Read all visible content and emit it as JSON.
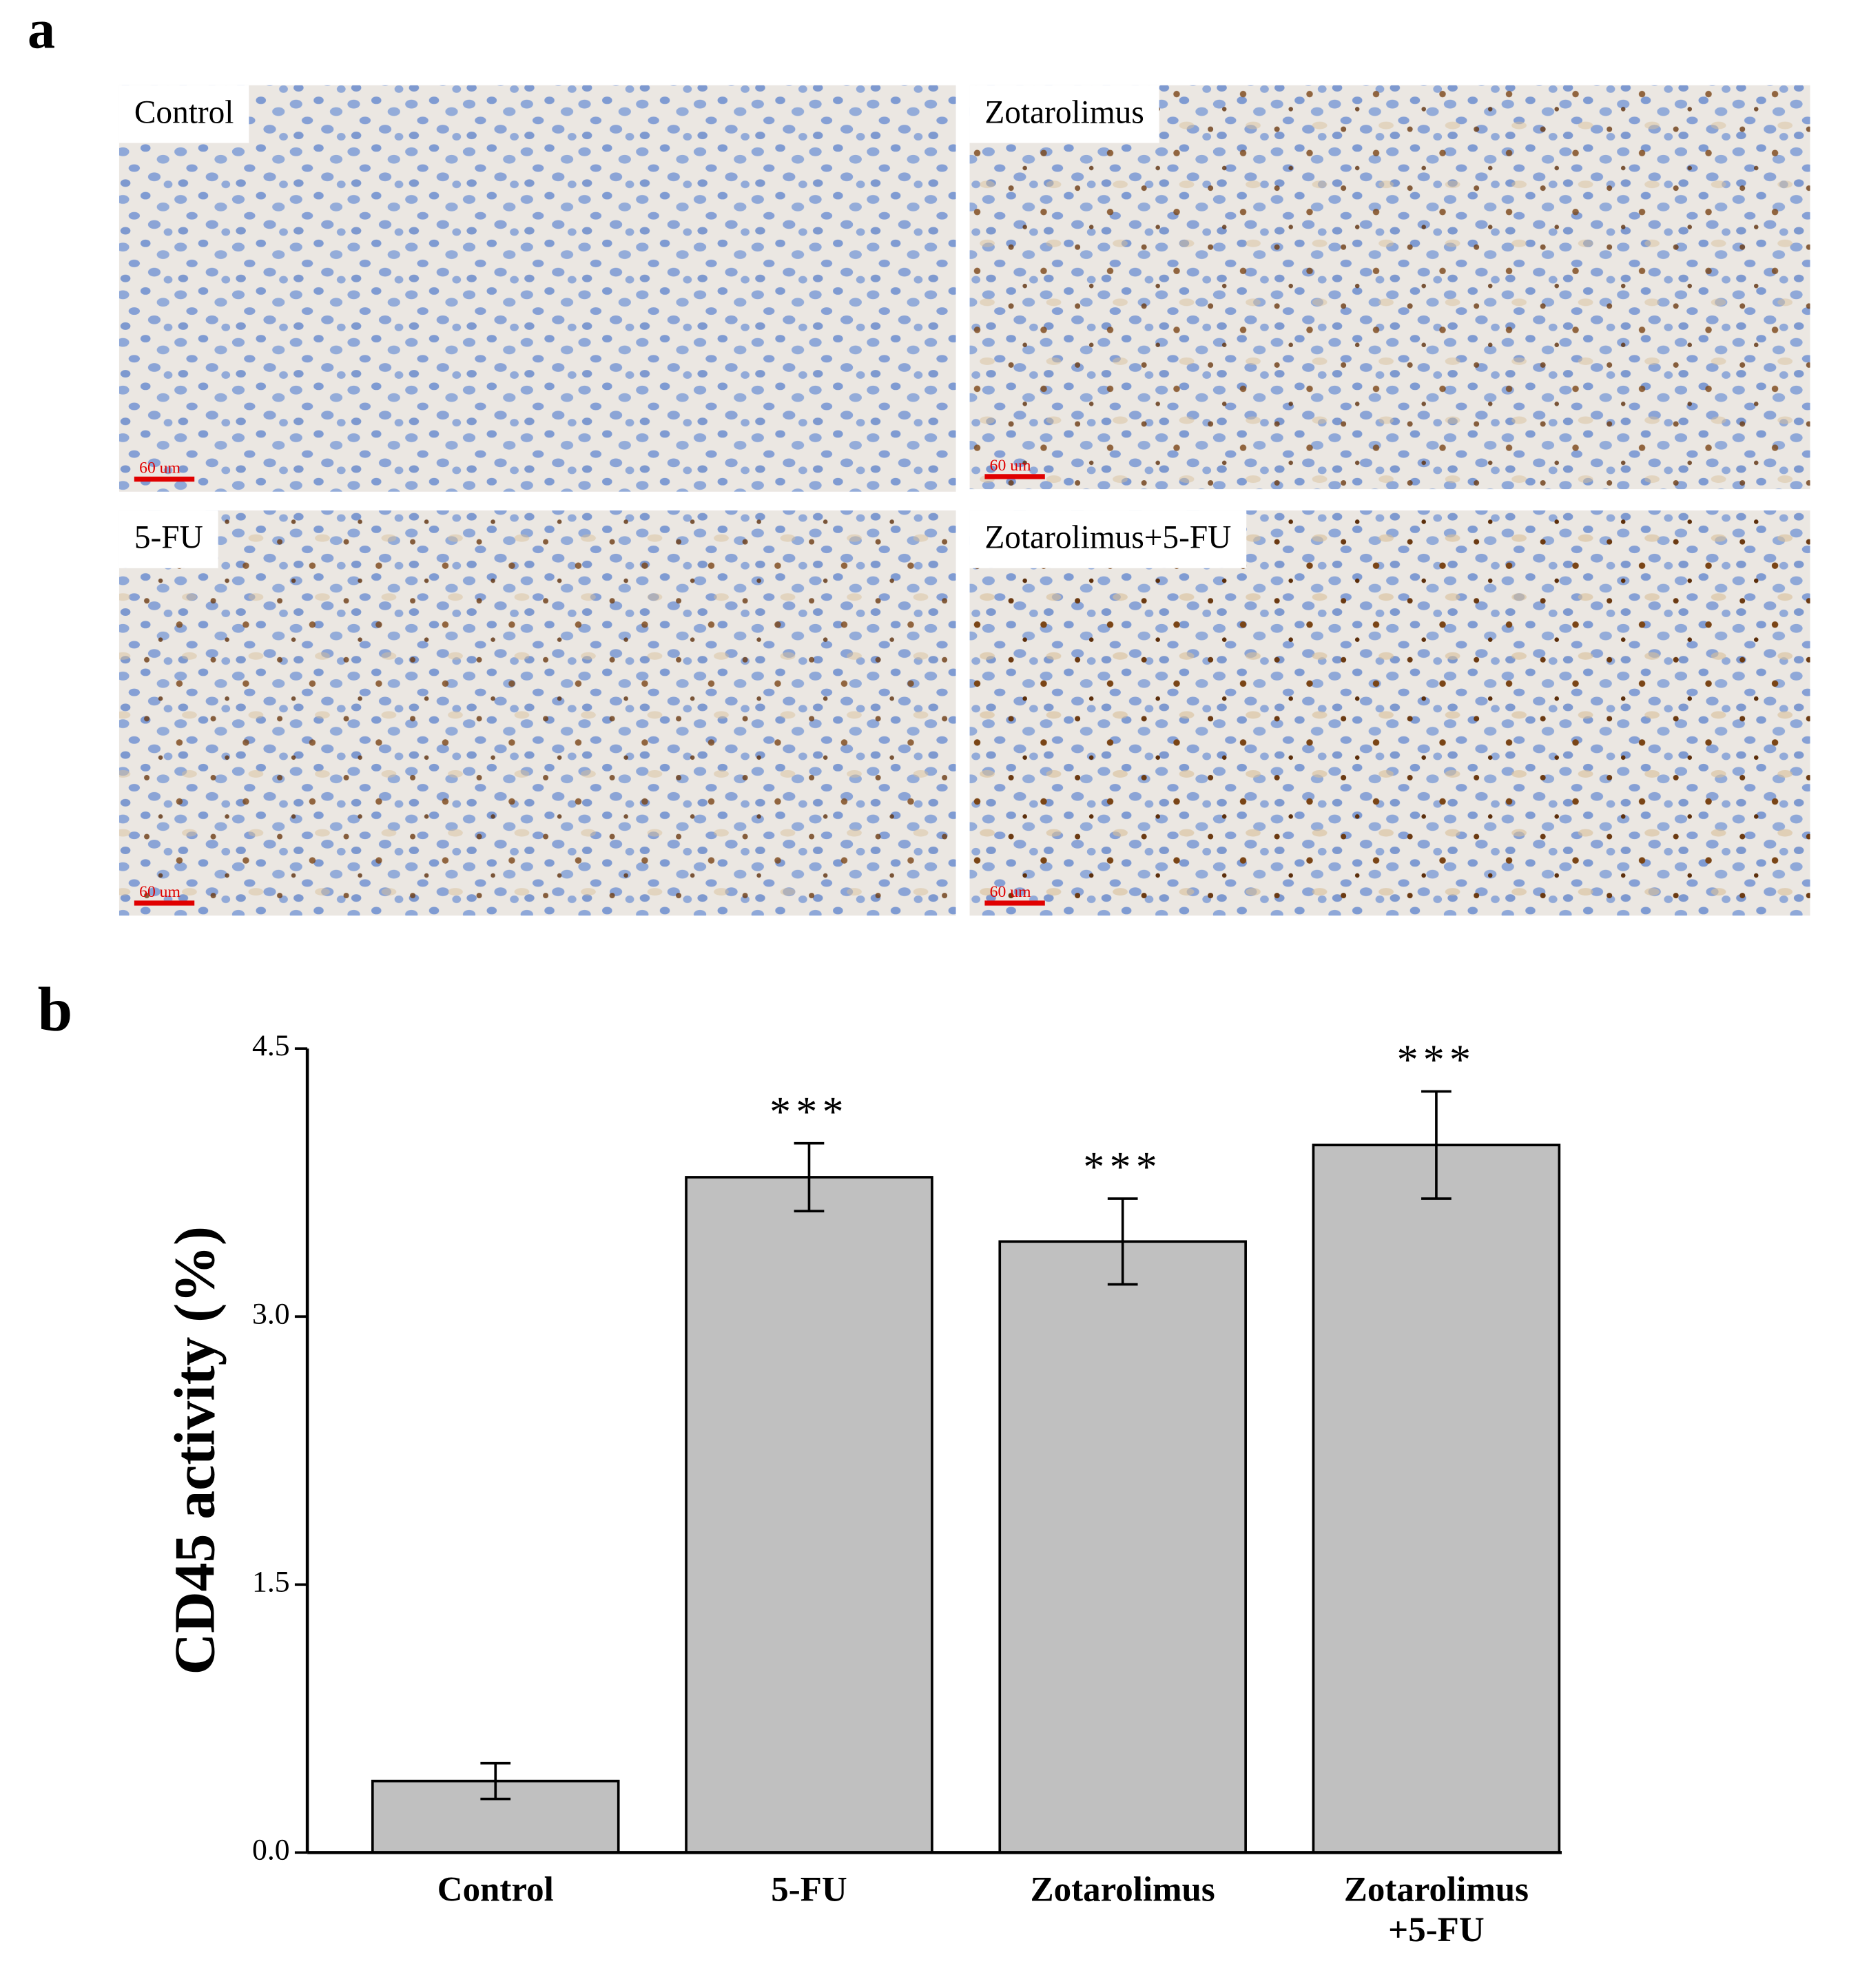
{
  "figure": {
    "panel_a_label": "a",
    "panel_b_label": "b",
    "images": [
      {
        "label": "Control",
        "scale_bar": "60 um"
      },
      {
        "label": "Zotarolimus",
        "scale_bar": "60 um"
      },
      {
        "label": "5-FU",
        "scale_bar": "60 um"
      },
      {
        "label": "Zotarolimus+5-FU",
        "scale_bar": "60 um"
      }
    ]
  },
  "chart_data": {
    "type": "bar",
    "categories": [
      "Control",
      "5-FU",
      "Zotarolimus",
      "Zotarolimus\n+5-FU"
    ],
    "values": [
      0.4,
      3.78,
      3.42,
      3.96
    ],
    "errors": [
      0.1,
      0.19,
      0.24,
      0.3
    ],
    "annotations": [
      null,
      "***",
      "***",
      "***"
    ],
    "color": "#c0c0c0",
    "ylabel": "CD45 activity (%)",
    "ylim": [
      0,
      4.5
    ],
    "yticks": [
      {
        "value": 0,
        "label": "0.0"
      },
      1.5,
      {
        "value": 3,
        "label": "3.0"
      },
      4.5
    ]
  }
}
